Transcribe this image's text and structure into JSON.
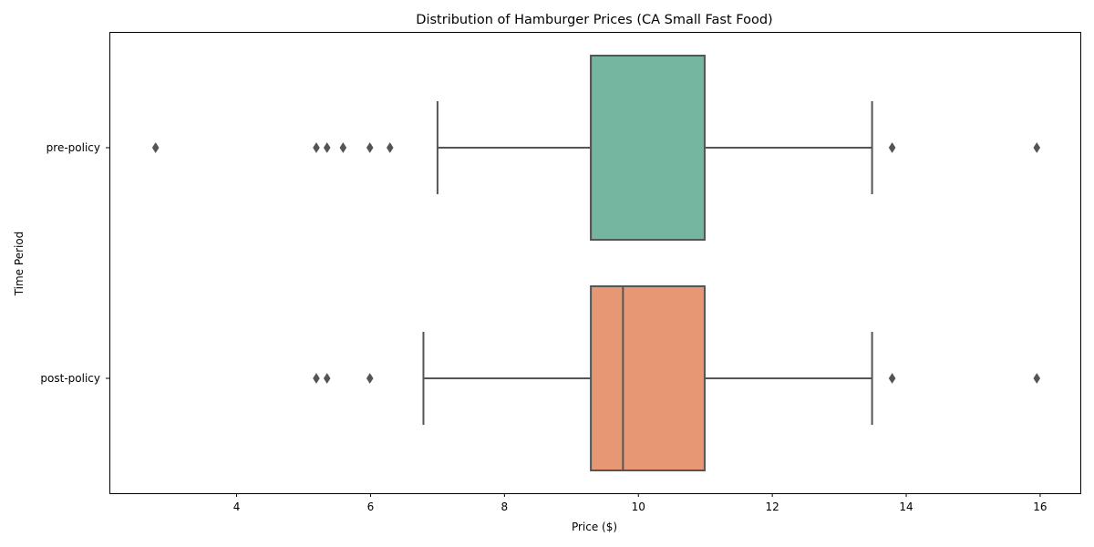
{
  "chart_data": {
    "type": "boxplot",
    "orientation": "horizontal",
    "title": "Distribution of Hamburger Prices (CA Small Fast Food)",
    "xlabel": "Price ($)",
    "ylabel": "Time Period",
    "xlim": [
      2.1,
      16.6
    ],
    "xticks": [
      4,
      6,
      8,
      10,
      12,
      14,
      16
    ],
    "grid": false,
    "outlier_color": "#555555",
    "line_color": "#555555",
    "categories": [
      "pre-policy",
      "post-policy"
    ],
    "series": [
      {
        "category": "pre-policy",
        "color": "#74b6a0",
        "whisker_low": 7.0,
        "q1": 9.29,
        "median": 9.29,
        "q3": 10.99,
        "whisker_high": 13.49,
        "outliers": [
          2.79,
          5.19,
          5.35,
          5.59,
          5.99,
          6.29,
          13.79,
          15.95
        ]
      },
      {
        "category": "post-policy",
        "color": "#e89774",
        "whisker_low": 6.79,
        "q1": 9.29,
        "median": 9.77,
        "q3": 10.99,
        "whisker_high": 13.49,
        "outliers": [
          5.19,
          5.35,
          5.99,
          13.79,
          15.95
        ]
      }
    ]
  }
}
